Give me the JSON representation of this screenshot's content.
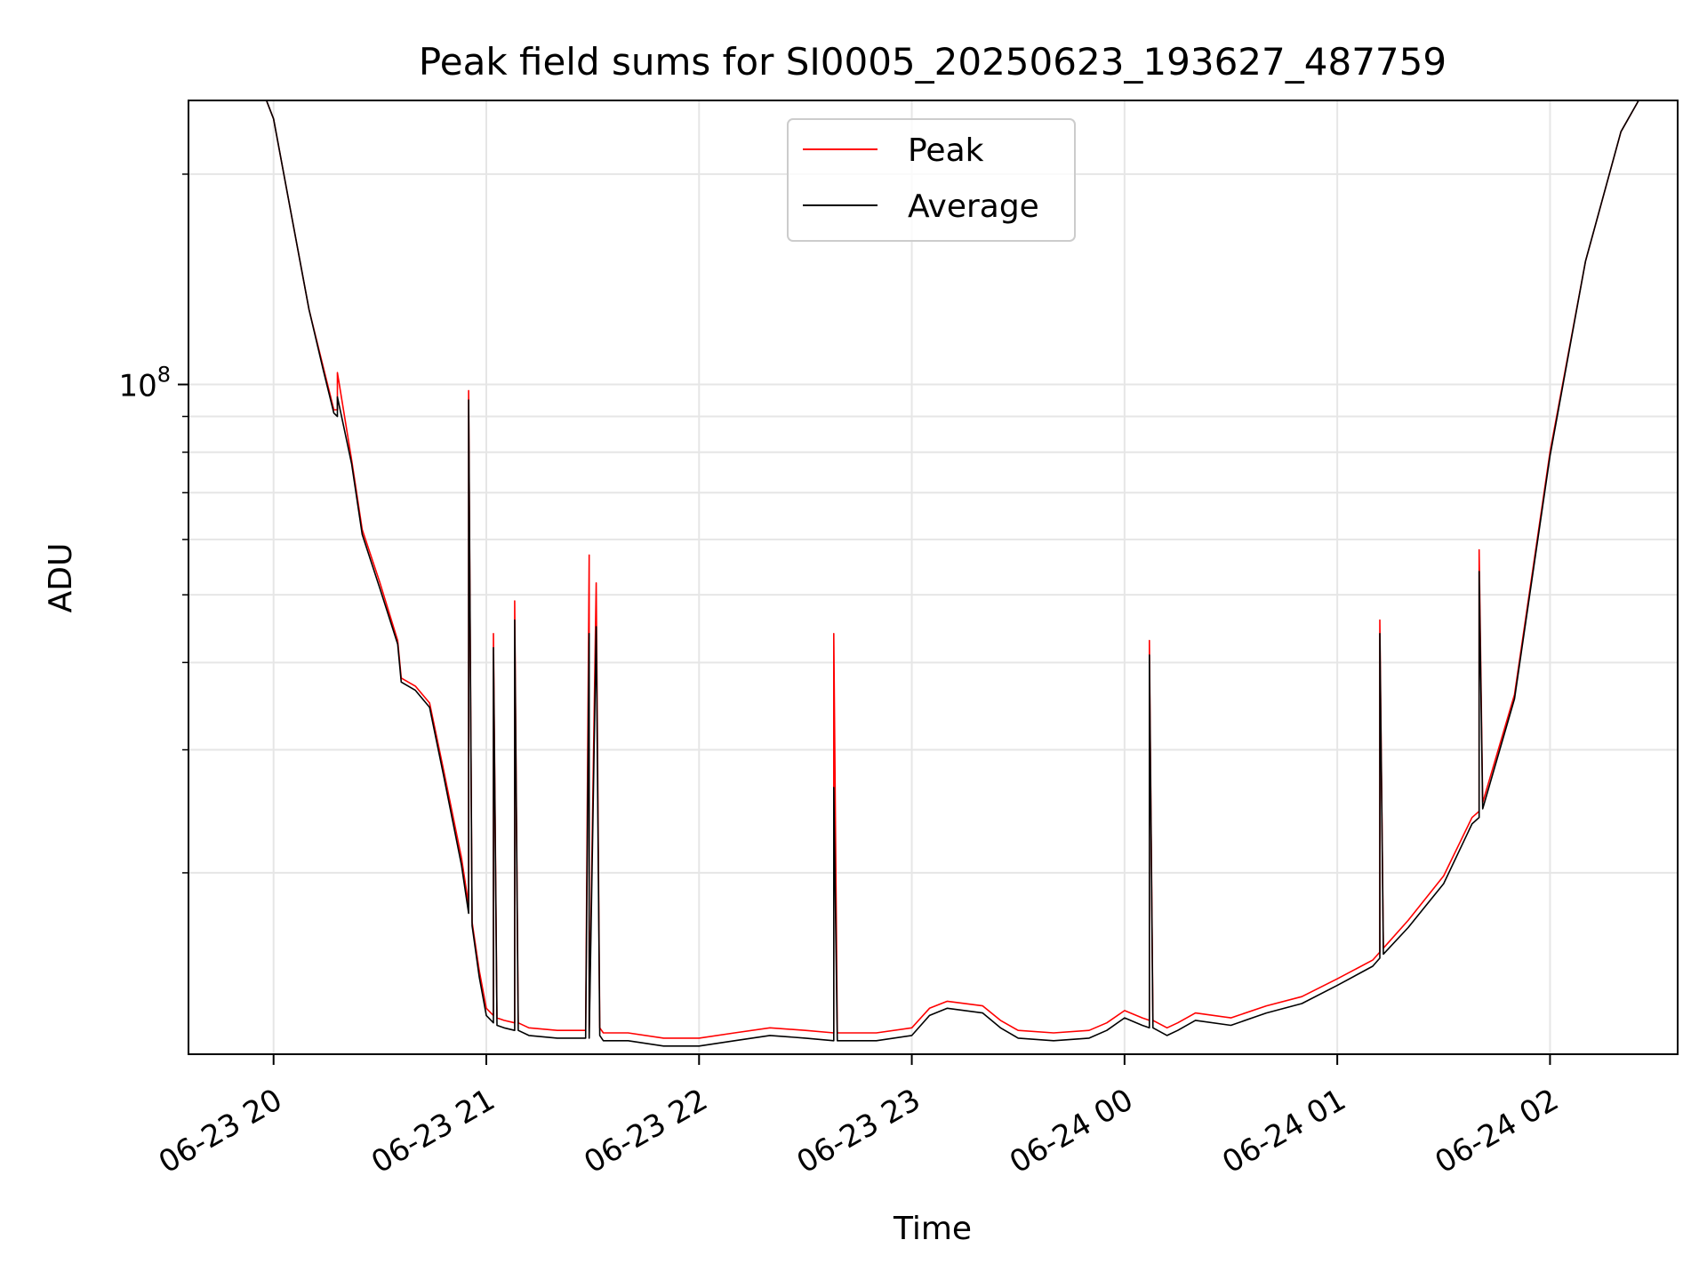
{
  "chart_data": {
    "type": "line",
    "title": "Peak field sums for SI0005_20250623_193627_487759",
    "xlabel": "Time",
    "ylabel": "ADU",
    "y_scale": "log",
    "ylim": [
      11000000,
      255000000
    ],
    "xlim": [
      "2025-06-23 19:36",
      "2025-06-24 02:36"
    ],
    "x_ticks": [
      "06-23 20",
      "06-23 21",
      "06-23 22",
      "06-23 23",
      "06-24 00",
      "06-24 01",
      "06-24 02"
    ],
    "x_tick_values": [
      "2025-06-23 20:00",
      "2025-06-23 21:00",
      "2025-06-23 22:00",
      "2025-06-23 23:00",
      "2025-06-24 00:00",
      "2025-06-24 01:00",
      "2025-06-24 02:00"
    ],
    "y_tick_labels": [
      {
        "base": "10",
        "exp": "8",
        "value": 100000000
      }
    ],
    "y_minor_ticks": [
      20000000,
      30000000,
      40000000,
      50000000,
      60000000,
      70000000,
      80000000,
      90000000,
      200000000
    ],
    "grid": true,
    "legend": {
      "position": "top-center",
      "entries": [
        "Peak",
        "Average"
      ]
    },
    "series": [
      {
        "name": "Peak",
        "color": "#ff0000",
        "x": [
          "2025-06-23 19:36",
          "2025-06-23 19:58",
          "2025-06-23 20:00",
          "2025-06-23 20:05",
          "2025-06-23 20:10",
          "2025-06-23 20:14",
          "2025-06-23 20:17",
          "2025-06-23 20:18",
          "2025-06-23 20:18",
          "2025-06-23 20:22",
          "2025-06-23 20:25",
          "2025-06-23 20:30",
          "2025-06-23 20:35",
          "2025-06-23 20:36",
          "2025-06-23 20:40",
          "2025-06-23 20:44",
          "2025-06-23 20:48",
          "2025-06-23 20:53",
          "2025-06-23 20:55",
          "2025-06-23 20:55",
          "2025-06-23 20:56",
          "2025-06-23 20:58",
          "2025-06-23 21:00",
          "2025-06-23 21:02",
          "2025-06-23 21:02",
          "2025-06-23 21:03",
          "2025-06-23 21:05",
          "2025-06-23 21:08",
          "2025-06-23 21:08",
          "2025-06-23 21:09",
          "2025-06-23 21:12",
          "2025-06-23 21:20",
          "2025-06-23 21:28",
          "2025-06-23 21:29",
          "2025-06-23 21:29",
          "2025-06-23 21:31",
          "2025-06-23 21:32",
          "2025-06-23 21:33",
          "2025-06-23 21:40",
          "2025-06-23 21:50",
          "2025-06-23 22:00",
          "2025-06-23 22:10",
          "2025-06-23 22:20",
          "2025-06-23 22:30",
          "2025-06-23 22:38",
          "2025-06-23 22:38",
          "2025-06-23 22:39",
          "2025-06-23 22:50",
          "2025-06-23 23:00",
          "2025-06-23 23:05",
          "2025-06-23 23:10",
          "2025-06-23 23:20",
          "2025-06-23 23:25",
          "2025-06-23 23:30",
          "2025-06-23 23:40",
          "2025-06-23 23:50",
          "2025-06-23 23:55",
          "2025-06-24 00:00",
          "2025-06-24 00:05",
          "2025-06-24 00:07",
          "2025-06-24 00:07",
          "2025-06-24 00:08",
          "2025-06-24 00:12",
          "2025-06-24 00:15",
          "2025-06-24 00:20",
          "2025-06-24 00:30",
          "2025-06-24 00:40",
          "2025-06-24 00:50",
          "2025-06-24 01:00",
          "2025-06-24 01:10",
          "2025-06-24 01:12",
          "2025-06-24 01:12",
          "2025-06-24 01:13",
          "2025-06-24 01:20",
          "2025-06-24 01:30",
          "2025-06-24 01:38",
          "2025-06-24 01:40",
          "2025-06-24 01:40",
          "2025-06-24 01:41",
          "2025-06-24 01:50",
          "2025-06-24 02:00",
          "2025-06-24 02:10",
          "2025-06-24 02:20",
          "2025-06-24 02:25",
          "2025-06-24 02:36"
        ],
        "y": [
          255000000,
          255000000,
          240000000,
          175000000,
          128000000,
          106000000,
          92000000,
          92000000,
          104000000,
          78000000,
          62000000,
          52000000,
          43000000,
          38000000,
          37000000,
          35000000,
          28000000,
          21000000,
          18000000,
          98000000,
          17000000,
          14500000,
          12800000,
          12500000,
          44000000,
          12400000,
          12300000,
          12200000,
          49000000,
          12200000,
          12000000,
          11900000,
          11900000,
          57000000,
          11900000,
          52000000,
          12000000,
          11800000,
          11800000,
          11600000,
          11600000,
          11800000,
          12000000,
          11900000,
          11800000,
          44000000,
          11800000,
          11800000,
          12000000,
          12800000,
          13100000,
          12900000,
          12300000,
          11900000,
          11800000,
          11900000,
          12200000,
          12700000,
          12400000,
          12300000,
          43000000,
          12300000,
          12000000,
          12200000,
          12600000,
          12400000,
          12900000,
          13300000,
          14100000,
          15000000,
          15400000,
          46000000,
          15600000,
          17100000,
          19800000,
          24000000,
          24500000,
          58000000,
          25200000,
          36000000,
          80000000,
          150000000,
          230000000,
          255000000,
          255000000
        ]
      },
      {
        "name": "Average",
        "color": "#000000",
        "x": [
          "2025-06-23 19:36",
          "2025-06-23 19:58",
          "2025-06-23 20:00",
          "2025-06-23 20:05",
          "2025-06-23 20:10",
          "2025-06-23 20:14",
          "2025-06-23 20:17",
          "2025-06-23 20:18",
          "2025-06-23 20:18",
          "2025-06-23 20:22",
          "2025-06-23 20:25",
          "2025-06-23 20:30",
          "2025-06-23 20:35",
          "2025-06-23 20:36",
          "2025-06-23 20:40",
          "2025-06-23 20:44",
          "2025-06-23 20:48",
          "2025-06-23 20:53",
          "2025-06-23 20:55",
          "2025-06-23 20:55",
          "2025-06-23 20:56",
          "2025-06-23 20:58",
          "2025-06-23 21:00",
          "2025-06-23 21:02",
          "2025-06-23 21:02",
          "2025-06-23 21:03",
          "2025-06-23 21:05",
          "2025-06-23 21:08",
          "2025-06-23 21:08",
          "2025-06-23 21:09",
          "2025-06-23 21:12",
          "2025-06-23 21:20",
          "2025-06-23 21:28",
          "2025-06-23 21:29",
          "2025-06-23 21:29",
          "2025-06-23 21:31",
          "2025-06-23 21:32",
          "2025-06-23 21:33",
          "2025-06-23 21:40",
          "2025-06-23 21:50",
          "2025-06-23 22:00",
          "2025-06-23 22:10",
          "2025-06-23 22:20",
          "2025-06-23 22:30",
          "2025-06-23 22:38",
          "2025-06-23 22:38",
          "2025-06-23 22:39",
          "2025-06-23 22:50",
          "2025-06-23 23:00",
          "2025-06-23 23:05",
          "2025-06-23 23:10",
          "2025-06-23 23:20",
          "2025-06-23 23:25",
          "2025-06-23 23:30",
          "2025-06-23 23:40",
          "2025-06-23 23:50",
          "2025-06-23 23:55",
          "2025-06-24 00:00",
          "2025-06-24 00:05",
          "2025-06-24 00:07",
          "2025-06-24 00:07",
          "2025-06-24 00:08",
          "2025-06-24 00:12",
          "2025-06-24 00:15",
          "2025-06-24 00:20",
          "2025-06-24 00:30",
          "2025-06-24 00:40",
          "2025-06-24 00:50",
          "2025-06-24 01:00",
          "2025-06-24 01:10",
          "2025-06-24 01:12",
          "2025-06-24 01:12",
          "2025-06-24 01:13",
          "2025-06-24 01:20",
          "2025-06-24 01:30",
          "2025-06-24 01:38",
          "2025-06-24 01:40",
          "2025-06-24 01:40",
          "2025-06-24 01:41",
          "2025-06-24 01:50",
          "2025-06-24 02:00",
          "2025-06-24 02:10",
          "2025-06-24 02:20",
          "2025-06-24 02:25",
          "2025-06-24 02:36"
        ],
        "y": [
          255000000,
          255000000,
          240000000,
          175000000,
          128000000,
          105000000,
          91000000,
          90000000,
          96000000,
          77000000,
          61000000,
          51000000,
          42500000,
          37500000,
          36500000,
          34500000,
          27500000,
          20500000,
          17500000,
          95000000,
          16800000,
          14200000,
          12500000,
          12200000,
          42000000,
          12100000,
          12000000,
          11900000,
          46000000,
          11900000,
          11700000,
          11600000,
          11600000,
          44000000,
          11600000,
          45000000,
          11700000,
          11500000,
          11500000,
          11300000,
          11300000,
          11500000,
          11700000,
          11600000,
          11500000,
          26500000,
          11500000,
          11500000,
          11700000,
          12500000,
          12800000,
          12600000,
          12000000,
          11600000,
          11500000,
          11600000,
          11900000,
          12400000,
          12100000,
          12000000,
          41000000,
          12000000,
          11700000,
          11900000,
          12300000,
          12100000,
          12600000,
          13000000,
          13800000,
          14700000,
          15100000,
          44000000,
          15300000,
          16700000,
          19300000,
          23500000,
          24000000,
          54000000,
          24700000,
          35500000,
          79000000,
          150000000,
          230000000,
          255000000,
          255000000
        ]
      }
    ]
  }
}
